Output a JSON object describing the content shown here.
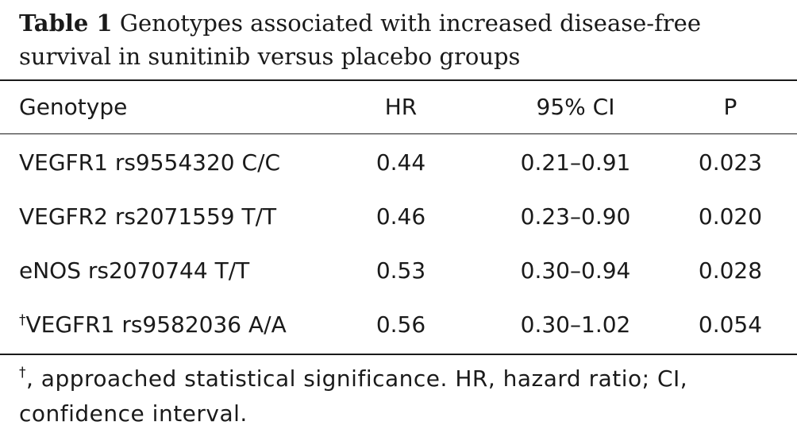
{
  "table": {
    "caption_label": "Table 1",
    "caption_text": "Genotypes associated with increased disease-free survival in sunitinib versus placebo groups",
    "headers": {
      "genotype": "Genotype",
      "hr": "HR",
      "ci": "95% CI",
      "p": "P"
    },
    "rows": [
      {
        "marker": "",
        "genotype": "VEGFR1 rs9554320 C/C",
        "hr": "0.44",
        "ci": "0.21–0.91",
        "p": "0.023"
      },
      {
        "marker": "",
        "genotype": "VEGFR2 rs2071559 T/T",
        "hr": "0.46",
        "ci": "0.23–0.90",
        "p": "0.020"
      },
      {
        "marker": "",
        "genotype": "eNOS rs2070744 T/T",
        "hr": "0.53",
        "ci": "0.30–0.94",
        "p": "0.028"
      },
      {
        "marker": "†",
        "genotype": "VEGFR1 rs9582036 A/A",
        "hr": "0.56",
        "ci": "0.30–1.02",
        "p": "0.054"
      }
    ],
    "footnote": {
      "marker": "†",
      "text": ", approached statistical significance. HR, hazard ratio; CI, confidence interval."
    }
  }
}
